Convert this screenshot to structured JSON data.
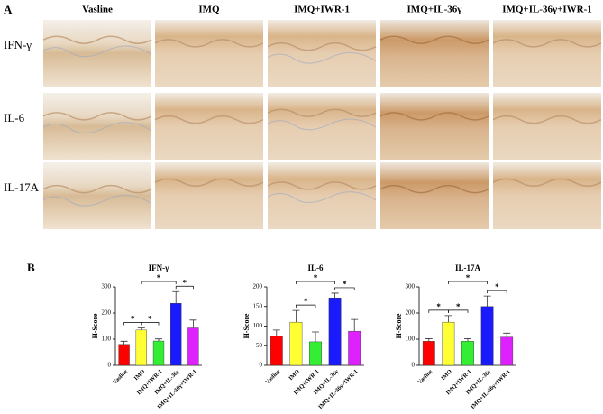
{
  "panel_a": {
    "label": "A",
    "columns": [
      "Vasline",
      "IMQ",
      "IMQ+IWR-1",
      "IMQ+IL-36γ",
      "IMQ+IL-36γ+IWR-1"
    ],
    "rows": [
      "IFN-γ",
      "IL-6",
      "IL-17A"
    ]
  },
  "panel_b": {
    "label": "B"
  },
  "chart_data": [
    {
      "type": "bar",
      "title": "IFN-γ",
      "ylabel": "H-Score",
      "categories": [
        "Vasline",
        "IMQ",
        "IMQ+IWR-1",
        "IMQ+IL-36γ",
        "IMQ+IL-36γ+IWR-1"
      ],
      "values": [
        80,
        135,
        93,
        237,
        143
      ],
      "errors": [
        12,
        8,
        8,
        45,
        30
      ],
      "colors": [
        "#ff0000",
        "#ffff33",
        "#33ee33",
        "#1a1aff",
        "#dd22ff"
      ],
      "ylim": [
        0,
        300
      ],
      "yticks": [
        0,
        100,
        200,
        300
      ],
      "significance": [
        {
          "between": [
            "Vasline",
            "IMQ"
          ],
          "label": "*"
        },
        {
          "between": [
            "IMQ",
            "IMQ+IWR-1"
          ],
          "label": "*"
        },
        {
          "between": [
            "IMQ",
            "IMQ+IL-36γ"
          ],
          "label": "*"
        },
        {
          "between": [
            "IMQ+IL-36γ",
            "IMQ+IL-36γ+IWR-1"
          ],
          "label": "*"
        }
      ]
    },
    {
      "type": "bar",
      "title": "IL-6",
      "ylabel": "H-Score",
      "categories": [
        "Vasline",
        "IMQ",
        "IMQ+IWR-1",
        "IMQ+IL-36γ",
        "IMQ+IL-36γ+IWR-1"
      ],
      "values": [
        75,
        110,
        60,
        172,
        87
      ],
      "errors": [
        15,
        30,
        25,
        12,
        30
      ],
      "colors": [
        "#ff0000",
        "#ffff33",
        "#33ee33",
        "#1a1aff",
        "#dd22ff"
      ],
      "ylim": [
        0,
        200
      ],
      "yticks": [
        0,
        50,
        100,
        150,
        200
      ],
      "significance": [
        {
          "between": [
            "IMQ",
            "IMQ+IWR-1"
          ],
          "label": "*"
        },
        {
          "between": [
            "IMQ",
            "IMQ+IL-36γ"
          ],
          "label": "*"
        },
        {
          "between": [
            "IMQ+IL-36γ",
            "IMQ+IL-36γ+IWR-1"
          ],
          "label": "*"
        }
      ]
    },
    {
      "type": "bar",
      "title": "IL-17A",
      "ylabel": "H-Score",
      "categories": [
        "Vasline",
        "IMQ",
        "IMQ+IWR-1",
        "IMQ+IL-36γ",
        "IMQ+IL-36γ+IWR-1"
      ],
      "values": [
        92,
        165,
        92,
        225,
        108
      ],
      "errors": [
        10,
        25,
        10,
        40,
        15
      ],
      "colors": [
        "#ff0000",
        "#ffff33",
        "#33ee33",
        "#1a1aff",
        "#dd22ff"
      ],
      "ylim": [
        0,
        300
      ],
      "yticks": [
        0,
        100,
        200,
        300
      ],
      "significance": [
        {
          "between": [
            "Vasline",
            "IMQ"
          ],
          "label": "*"
        },
        {
          "between": [
            "IMQ",
            "IMQ+IWR-1"
          ],
          "label": "*"
        },
        {
          "between": [
            "IMQ",
            "IMQ+IL-36γ"
          ],
          "label": "*"
        },
        {
          "between": [
            "IMQ+IL-36γ",
            "IMQ+IL-36γ+IWR-1"
          ],
          "label": "*"
        }
      ]
    }
  ]
}
